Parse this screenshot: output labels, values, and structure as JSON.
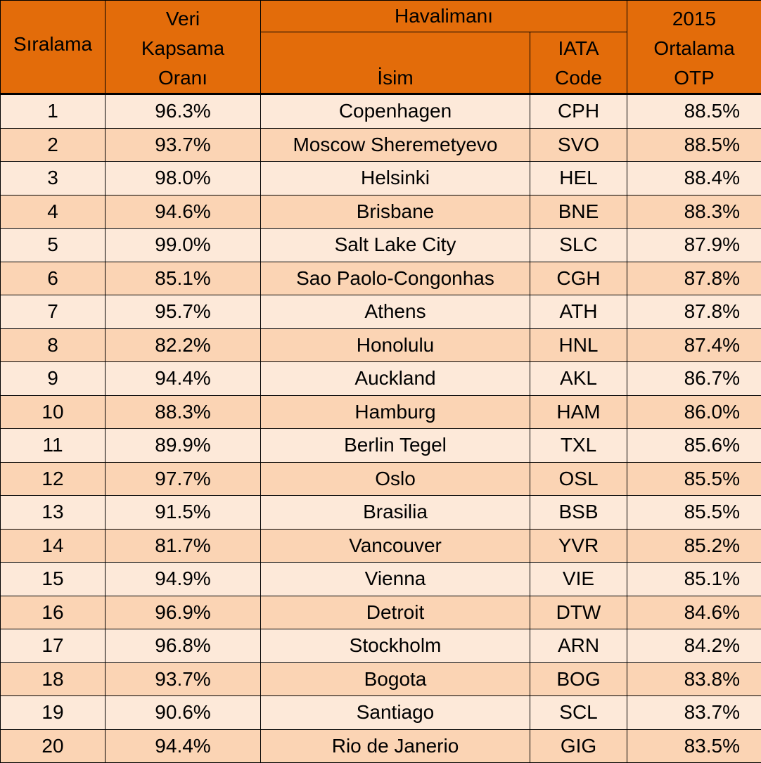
{
  "colors": {
    "header_bg": "#e36c0a",
    "row_light": "#fde9d9",
    "row_dark": "#fbd4b4",
    "border": "#000000"
  },
  "header": {
    "rank": "Sıralama",
    "coverage": [
      "Veri",
      "Kapsama",
      "Oranı"
    ],
    "airport_group": "Havalimanı",
    "name": "İsim",
    "iata": [
      "IATA",
      "Code"
    ],
    "otp": [
      "2015",
      "Ortalama",
      "OTP"
    ]
  },
  "rows": [
    {
      "rank": "1",
      "coverage": "96.3%",
      "name": "Copenhagen",
      "iata": "CPH",
      "otp": "88.5%"
    },
    {
      "rank": "2",
      "coverage": "93.7%",
      "name": "Moscow Sheremetyevo",
      "iata": "SVO",
      "otp": "88.5%"
    },
    {
      "rank": "3",
      "coverage": "98.0%",
      "name": "Helsinki",
      "iata": "HEL",
      "otp": "88.4%"
    },
    {
      "rank": "4",
      "coverage": "94.6%",
      "name": "Brisbane",
      "iata": "BNE",
      "otp": "88.3%"
    },
    {
      "rank": "5",
      "coverage": "99.0%",
      "name": "Salt Lake City",
      "iata": "SLC",
      "otp": "87.9%"
    },
    {
      "rank": "6",
      "coverage": "85.1%",
      "name": "Sao Paolo-Congonhas",
      "iata": "CGH",
      "otp": "87.8%"
    },
    {
      "rank": "7",
      "coverage": "95.7%",
      "name": "Athens",
      "iata": "ATH",
      "otp": "87.8%"
    },
    {
      "rank": "8",
      "coverage": "82.2%",
      "name": "Honolulu",
      "iata": "HNL",
      "otp": "87.4%"
    },
    {
      "rank": "9",
      "coverage": "94.4%",
      "name": "Auckland",
      "iata": "AKL",
      "otp": "86.7%"
    },
    {
      "rank": "10",
      "coverage": "88.3%",
      "name": "Hamburg",
      "iata": "HAM",
      "otp": "86.0%"
    },
    {
      "rank": "11",
      "coverage": "89.9%",
      "name": "Berlin Tegel",
      "iata": "TXL",
      "otp": "85.6%"
    },
    {
      "rank": "12",
      "coverage": "97.7%",
      "name": "Oslo",
      "iata": "OSL",
      "otp": "85.5%"
    },
    {
      "rank": "13",
      "coverage": "91.5%",
      "name": "Brasilia",
      "iata": "BSB",
      "otp": "85.5%"
    },
    {
      "rank": "14",
      "coverage": "81.7%",
      "name": "Vancouver",
      "iata": "YVR",
      "otp": "85.2%"
    },
    {
      "rank": "15",
      "coverage": "94.9%",
      "name": "Vienna",
      "iata": "VIE",
      "otp": "85.1%"
    },
    {
      "rank": "16",
      "coverage": "96.9%",
      "name": "Detroit",
      "iata": "DTW",
      "otp": "84.6%"
    },
    {
      "rank": "17",
      "coverage": "96.8%",
      "name": "Stockholm",
      "iata": "ARN",
      "otp": "84.2%"
    },
    {
      "rank": "18",
      "coverage": "93.7%",
      "name": "Bogota",
      "iata": "BOG",
      "otp": "83.8%"
    },
    {
      "rank": "19",
      "coverage": "90.6%",
      "name": "Santiago",
      "iata": "SCL",
      "otp": "83.7%"
    },
    {
      "rank": "20",
      "coverage": "94.4%",
      "name": "Rio de Janerio",
      "iata": "GIG",
      "otp": "83.5%"
    }
  ]
}
